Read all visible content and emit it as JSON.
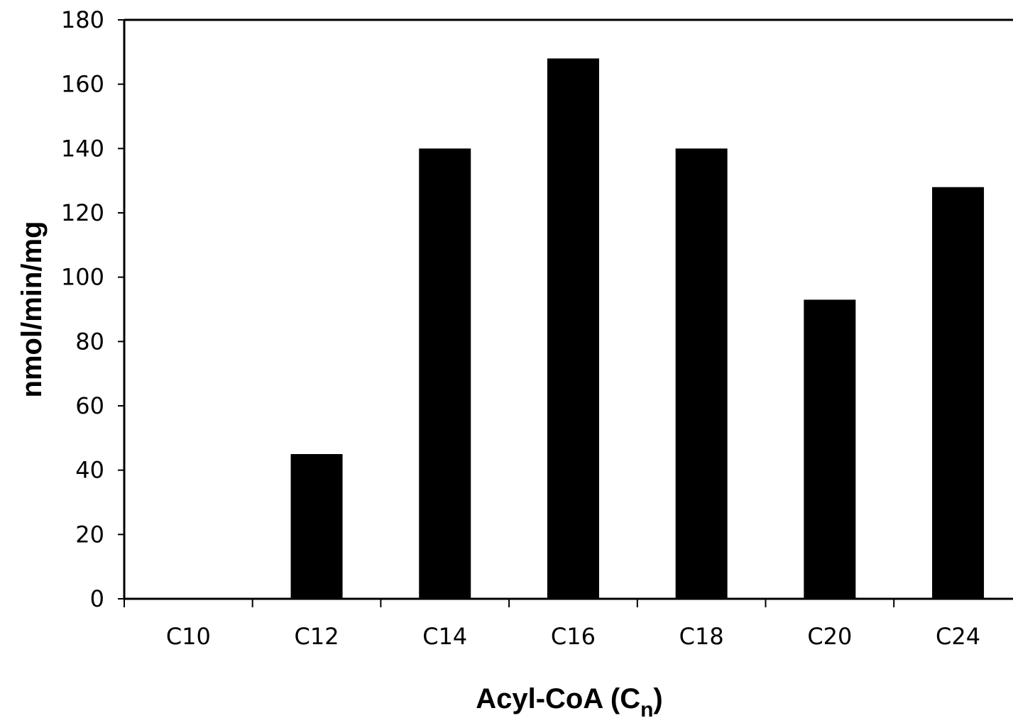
{
  "chart_data": {
    "type": "bar",
    "categories": [
      "C10",
      "C12",
      "C14",
      "C16",
      "C18",
      "C20",
      "C24"
    ],
    "values": [
      0,
      45,
      140,
      168,
      140,
      93,
      128
    ],
    "xlabel": "Acyl-CoA (C",
    "xlabel_subscript": "n",
    "xlabel_suffix": ")",
    "ylabel": "nmol/min/mg",
    "ylim": [
      0,
      180
    ],
    "yticks": [
      0,
      20,
      40,
      60,
      80,
      100,
      120,
      140,
      160,
      180
    ],
    "grid": false,
    "legend": "none",
    "bar_color": "#000000"
  }
}
